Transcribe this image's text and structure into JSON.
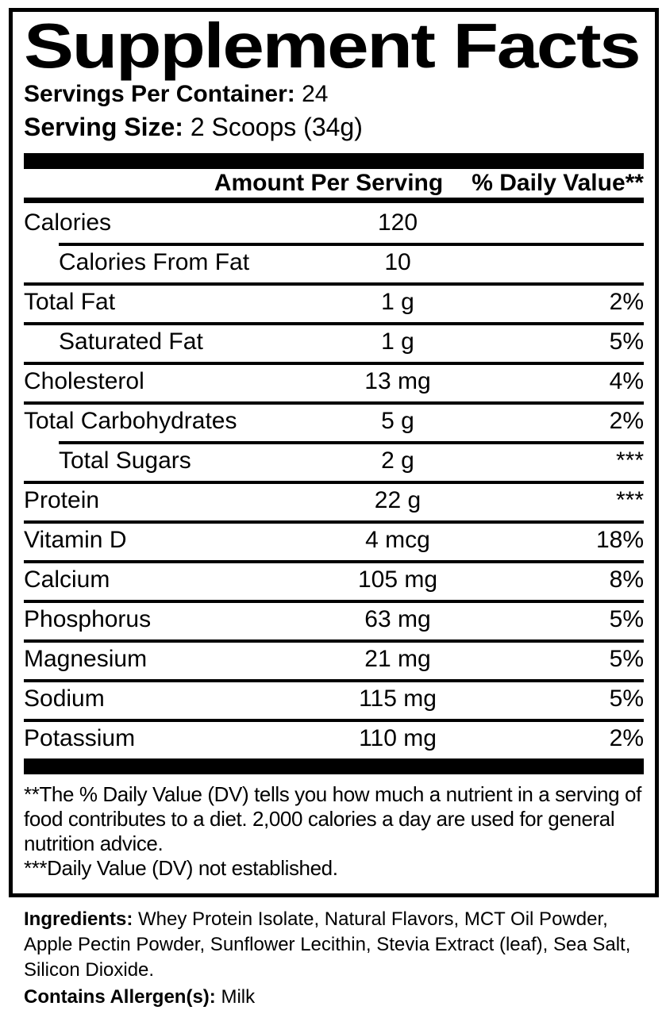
{
  "label": {
    "title": "Supplement Facts",
    "servings": {
      "label": "Servings Per Container:",
      "value": "24"
    },
    "serving_size": {
      "label": "Serving Size:",
      "value": "2 Scoops (34g)"
    },
    "columns": {
      "amount": "Amount Per Serving",
      "daily_value": "% Daily Value**"
    },
    "rows": [
      {
        "name": "Calories",
        "amount": "120",
        "dv": ""
      },
      {
        "name": "Calories From Fat",
        "amount": "10",
        "dv": ""
      },
      {
        "name": "Total Fat",
        "amount": "1 g",
        "dv": "2%"
      },
      {
        "name": "Saturated Fat",
        "amount": "1 g",
        "dv": "5%"
      },
      {
        "name": "Cholesterol",
        "amount": "13 mg",
        "dv": "4%"
      },
      {
        "name": "Total Carbohydrates",
        "amount": "5 g",
        "dv": "2%"
      },
      {
        "name": "Total Sugars",
        "amount": "2 g",
        "dv": "***"
      },
      {
        "name": "Protein",
        "amount": "22 g",
        "dv": "***"
      },
      {
        "name": "Vitamin D",
        "amount": "4 mcg",
        "dv": "18%"
      },
      {
        "name": "Calcium",
        "amount": "105 mg",
        "dv": "8%"
      },
      {
        "name": "Phosphorus",
        "amount": "63 mg",
        "dv": "5%"
      },
      {
        "name": "Magnesium",
        "amount": "21 mg",
        "dv": "5%"
      },
      {
        "name": "Sodium",
        "amount": "115 mg",
        "dv": "5%"
      },
      {
        "name": "Potassium",
        "amount": "110 mg",
        "dv": "2%"
      }
    ],
    "footnotes": {
      "daily_value": "**The % Daily Value (DV) tells you how much a nutrient in a serving of food contributes to a diet. 2,000 calories a day are used for general nutrition advice.",
      "not_established": "***Daily Value (DV) not established."
    }
  },
  "ingredients": {
    "label": "Ingredients:",
    "value": "Whey Protein Isolate, Natural Flavors, MCT Oil Powder, Apple Pectin Powder, Sunflower Lecithin, Stevia Extract (leaf), Sea Salt, Silicon Dioxide.",
    "allergen_label": "Contains Allergen(s):",
    "allergen_value": "Milk"
  },
  "colors": {
    "text": "#000000",
    "background": "#ffffff",
    "rule": "#000000"
  }
}
